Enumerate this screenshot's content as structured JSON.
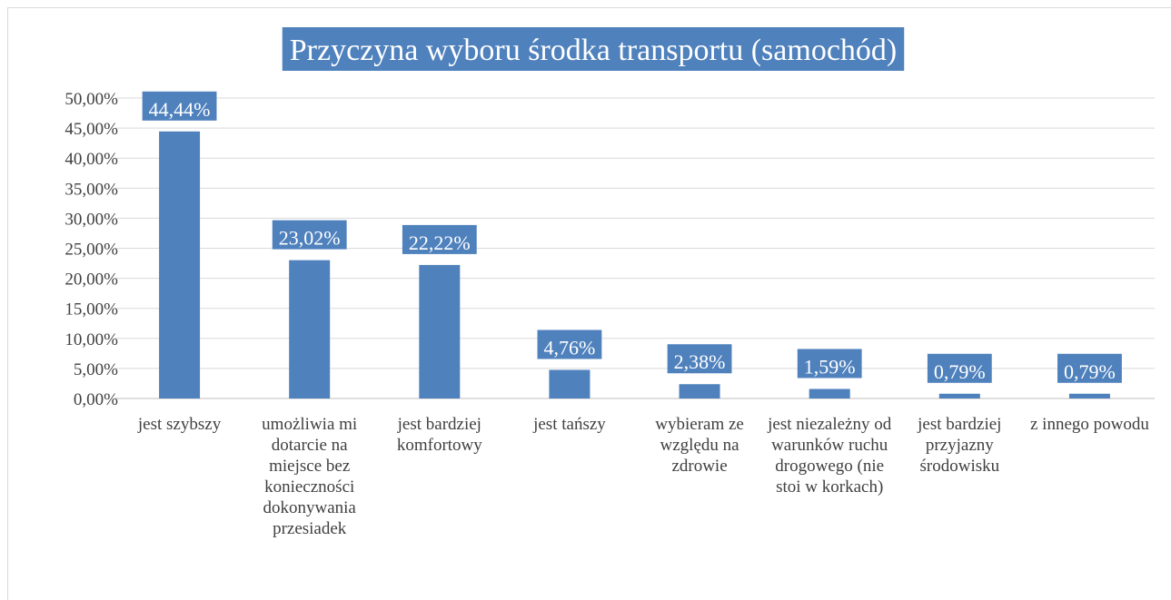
{
  "chart_data": {
    "type": "bar",
    "title": "Przyczyna wyboru środka transportu (samochód)",
    "categories": [
      "jest szybszy",
      "umożliwia mi dotarcie na miejsce bez konieczności dokonywania przesiadek",
      "jest bardziej komfortowy",
      "jest tańszy",
      "wybieram ze względu na zdrowie",
      "jest niezależny od warunków ruchu drogowego (nie stoi w korkach)",
      "jest bardziej przyjazny środowisku",
      "z innego powodu"
    ],
    "values": [
      44.44,
      23.02,
      22.22,
      4.76,
      2.38,
      1.59,
      0.79,
      0.79
    ],
    "value_labels": [
      "44,44%",
      "23,02%",
      "22,22%",
      "4,76%",
      "2,38%",
      "1,59%",
      "0,79%",
      "0,79%"
    ],
    "color": "#4f81bd",
    "ylim": [
      0,
      50
    ],
    "yticks": [
      {
        "value": 0,
        "label": "0,00%"
      },
      {
        "value": 5,
        "label": "5,00%"
      },
      {
        "value": 10,
        "label": "10,00%"
      },
      {
        "value": 15,
        "label": "15,00%"
      },
      {
        "value": 20,
        "label": "20,00%"
      },
      {
        "value": 25,
        "label": "25,00%"
      },
      {
        "value": 30,
        "label": "30,00%"
      },
      {
        "value": 35,
        "label": "35,00%"
      },
      {
        "value": 40,
        "label": "40,00%"
      },
      {
        "value": 45,
        "label": "45,00%"
      },
      {
        "value": 50,
        "label": "50,00%"
      }
    ],
    "grid": true
  }
}
